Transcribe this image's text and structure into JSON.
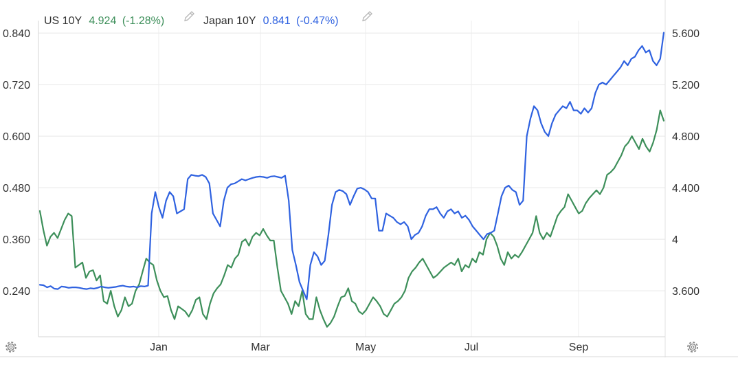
{
  "chart_data": {
    "type": "line",
    "legend_position": "top-left",
    "legend": [
      {
        "name": "US 10Y",
        "value": "4.924",
        "change": "(-1.28%)",
        "color": "#3d8f5a",
        "icon": "pencil-icon"
      },
      {
        "name": "Japan 10Y",
        "value": "0.841",
        "change": "(-0.47%)",
        "color": "#2f62e0",
        "icon": "pencil-icon"
      }
    ],
    "x_tick_labels": [
      "Jan",
      "Mar",
      "May",
      "Jul",
      "Sep"
    ],
    "left_axis": {
      "ticks": [
        0.84,
        0.72,
        0.6,
        0.48,
        0.36,
        0.24
      ],
      "labels": [
        "0.840",
        "0.720",
        "0.600",
        "0.480",
        "0.360",
        "0.240"
      ],
      "ylim": [
        0.165,
        0.885
      ]
    },
    "right_axis": {
      "ticks": [
        5.6,
        5.2,
        4.8,
        4.4,
        4.0,
        3.6
      ],
      "labels": [
        "5.600",
        "5.200",
        "4.800",
        "4.400",
        "4",
        "3.600"
      ],
      "ylim": [
        3.35,
        5.75
      ]
    },
    "grid": true,
    "series": [
      {
        "name": "Japan 10Y",
        "axis": "left",
        "color": "#2f62e0",
        "values": [
          0.254,
          0.253,
          0.248,
          0.251,
          0.245,
          0.244,
          0.25,
          0.249,
          0.247,
          0.248,
          0.248,
          0.247,
          0.245,
          0.244,
          0.246,
          0.245,
          0.247,
          0.25,
          0.248,
          0.247,
          0.248,
          0.249,
          0.251,
          0.252,
          0.25,
          0.249,
          0.25,
          0.248,
          0.251,
          0.25,
          0.252,
          0.42,
          0.47,
          0.435,
          0.41,
          0.45,
          0.47,
          0.46,
          0.42,
          0.425,
          0.43,
          0.5,
          0.51,
          0.508,
          0.507,
          0.51,
          0.505,
          0.49,
          0.42,
          0.405,
          0.39,
          0.45,
          0.48,
          0.488,
          0.49,
          0.495,
          0.5,
          0.497,
          0.5,
          0.503,
          0.505,
          0.506,
          0.505,
          0.503,
          0.506,
          0.507,
          0.505,
          0.503,
          0.508,
          0.45,
          0.335,
          0.3,
          0.26,
          0.24,
          0.22,
          0.3,
          0.33,
          0.32,
          0.3,
          0.31,
          0.37,
          0.44,
          0.47,
          0.475,
          0.472,
          0.465,
          0.44,
          0.46,
          0.478,
          0.48,
          0.476,
          0.47,
          0.455,
          0.455,
          0.38,
          0.38,
          0.42,
          0.415,
          0.41,
          0.4,
          0.395,
          0.4,
          0.39,
          0.36,
          0.37,
          0.375,
          0.39,
          0.415,
          0.43,
          0.43,
          0.435,
          0.42,
          0.41,
          0.425,
          0.43,
          0.42,
          0.425,
          0.41,
          0.415,
          0.405,
          0.39,
          0.38,
          0.37,
          0.36,
          0.372,
          0.375,
          0.38,
          0.42,
          0.46,
          0.48,
          0.485,
          0.475,
          0.47,
          0.44,
          0.45,
          0.6,
          0.64,
          0.67,
          0.66,
          0.63,
          0.61,
          0.6,
          0.63,
          0.65,
          0.66,
          0.67,
          0.665,
          0.68,
          0.66,
          0.66,
          0.652,
          0.665,
          0.655,
          0.665,
          0.7,
          0.72,
          0.725,
          0.72,
          0.73,
          0.74,
          0.75,
          0.76,
          0.775,
          0.765,
          0.78,
          0.785,
          0.8,
          0.81,
          0.795,
          0.8,
          0.775,
          0.765,
          0.78,
          0.841
        ]
      },
      {
        "name": "US 10Y",
        "axis": "right",
        "color": "#3d8f5a",
        "values": [
          4.22,
          4.07,
          3.95,
          4.02,
          4.05,
          4.01,
          4.08,
          4.15,
          4.2,
          4.18,
          3.78,
          3.8,
          3.82,
          3.7,
          3.75,
          3.76,
          3.68,
          3.72,
          3.52,
          3.5,
          3.6,
          3.48,
          3.4,
          3.45,
          3.55,
          3.48,
          3.5,
          3.6,
          3.65,
          3.75,
          3.85,
          3.82,
          3.8,
          3.68,
          3.6,
          3.55,
          3.56,
          3.45,
          3.38,
          3.48,
          3.46,
          3.44,
          3.4,
          3.45,
          3.53,
          3.55,
          3.42,
          3.38,
          3.5,
          3.58,
          3.62,
          3.65,
          3.72,
          3.8,
          3.78,
          3.85,
          3.88,
          3.98,
          4.0,
          3.95,
          4.02,
          4.05,
          4.03,
          4.08,
          4.03,
          3.99,
          3.99,
          3.78,
          3.6,
          3.55,
          3.5,
          3.42,
          3.52,
          3.48,
          3.6,
          3.42,
          3.38,
          3.38,
          3.55,
          3.45,
          3.38,
          3.32,
          3.35,
          3.4,
          3.48,
          3.55,
          3.56,
          3.62,
          3.52,
          3.5,
          3.44,
          3.42,
          3.45,
          3.5,
          3.55,
          3.52,
          3.48,
          3.42,
          3.4,
          3.45,
          3.5,
          3.52,
          3.55,
          3.6,
          3.7,
          3.75,
          3.78,
          3.82,
          3.85,
          3.8,
          3.75,
          3.7,
          3.72,
          3.75,
          3.78,
          3.8,
          3.82,
          3.8,
          3.85,
          3.75,
          3.8,
          3.78,
          3.85,
          3.82,
          3.9,
          3.88,
          4.0,
          4.05,
          4.02,
          3.95,
          3.85,
          3.8,
          3.9,
          3.85,
          3.88,
          3.86,
          3.9,
          3.95,
          4.0,
          4.05,
          4.18,
          4.05,
          4.0,
          4.05,
          4.02,
          4.1,
          4.18,
          4.22,
          4.25,
          4.35,
          4.3,
          4.25,
          4.2,
          4.22,
          4.28,
          4.32,
          4.35,
          4.38,
          4.35,
          4.4,
          4.5,
          4.52,
          4.55,
          4.6,
          4.65,
          4.72,
          4.75,
          4.8,
          4.75,
          4.7,
          4.78,
          4.72,
          4.68,
          4.75,
          4.85,
          5.0,
          4.92
        ]
      }
    ]
  }
}
